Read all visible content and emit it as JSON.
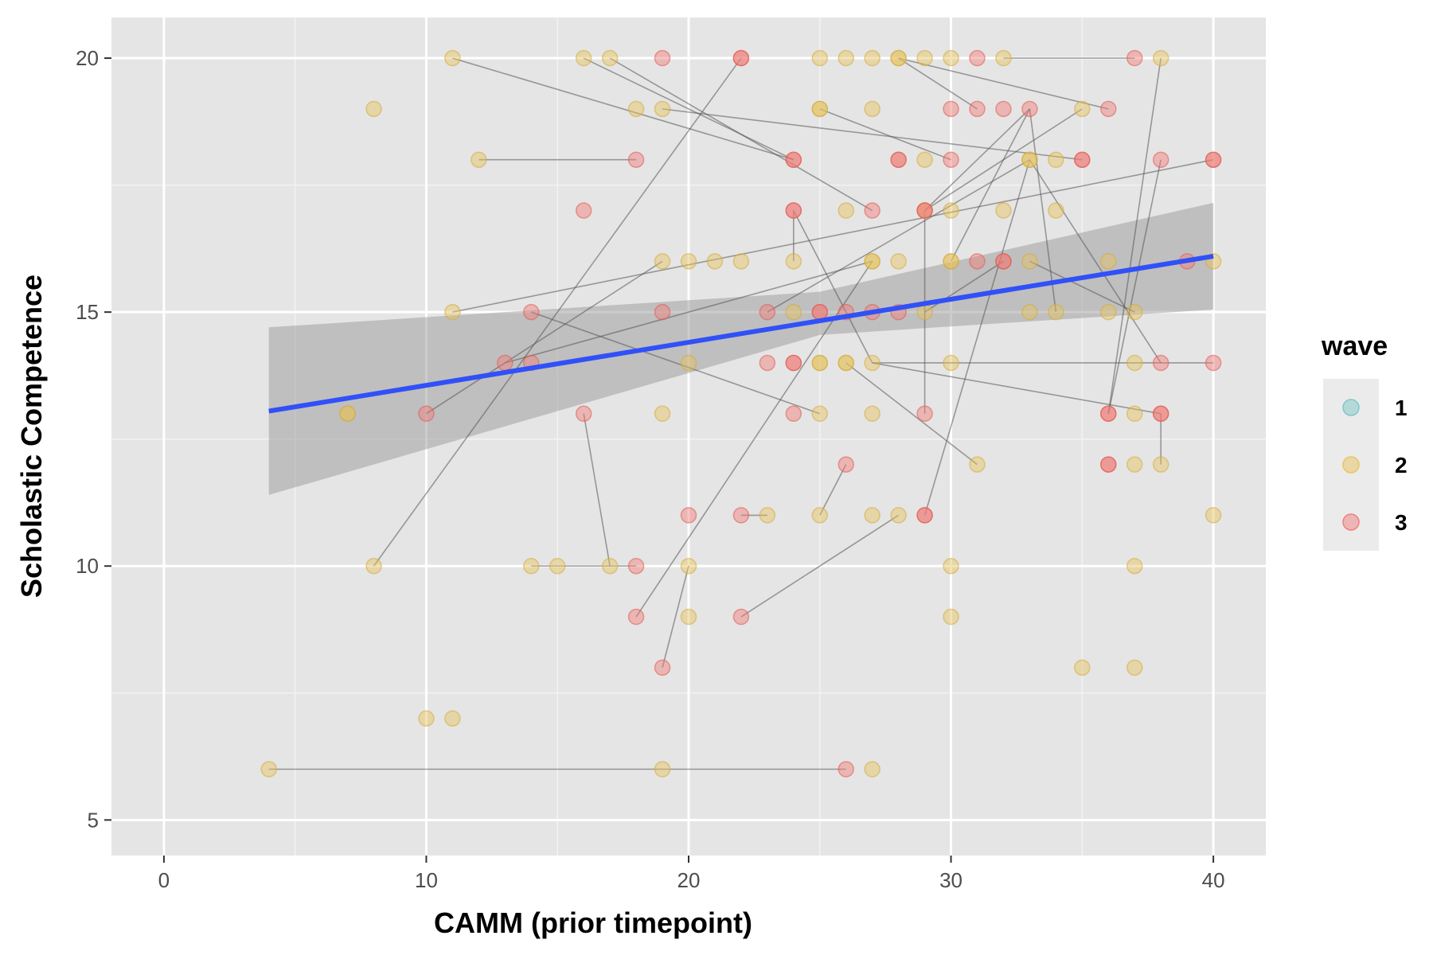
{
  "chart_data": {
    "type": "scatter",
    "title": "",
    "xlabel": "CAMM (prior timepoint)",
    "ylabel": "Scholastic Competence",
    "xlim": [
      -2,
      42
    ],
    "ylim": [
      4.3,
      20.8
    ],
    "x_ticks": [
      0,
      10,
      20,
      30,
      40
    ],
    "y_ticks": [
      5,
      10,
      15,
      20
    ],
    "grid": true,
    "legend": {
      "title": "wave",
      "placement": "right",
      "items": [
        {
          "label": "1",
          "color": "#7fc8c8"
        },
        {
          "label": "2",
          "color": "#e8c560"
        },
        {
          "label": "3",
          "color": "#f08080"
        }
      ]
    },
    "colors": {
      "wave2": "#e5c15b",
      "wave3": "#ef7b74",
      "wave2_stroke": "#d4aa3a",
      "wave3_stroke": "#e05a52",
      "trend": "#3050f8",
      "ribbon": "#999999",
      "panel": "#e5e5e5",
      "connector": "#555555"
    },
    "trend_line": {
      "x": [
        4,
        40
      ],
      "y": [
        13.05,
        16.1
      ],
      "ci_lower": [
        11.4,
        15.05
      ],
      "ci_upper": [
        14.7,
        17.15
      ],
      "ci_mid_x": 25,
      "ci_mid_lower": [
        14.55
      ],
      "ci_mid_upper": [
        15.4
      ]
    },
    "series": [
      {
        "name": "2",
        "points": [
          [
            11,
            20
          ],
          [
            16,
            20
          ],
          [
            17,
            20
          ],
          [
            25,
            20
          ],
          [
            26,
            20
          ],
          [
            27,
            20
          ],
          [
            28,
            20
          ],
          [
            28,
            20
          ],
          [
            29,
            20
          ],
          [
            30,
            20
          ],
          [
            32,
            20
          ],
          [
            38,
            20
          ],
          [
            8,
            19
          ],
          [
            18,
            19
          ],
          [
            19,
            19
          ],
          [
            25,
            19
          ],
          [
            25,
            19
          ],
          [
            27,
            19
          ],
          [
            35,
            19
          ],
          [
            12,
            18
          ],
          [
            29,
            18
          ],
          [
            33,
            18
          ],
          [
            33,
            18
          ],
          [
            34,
            18
          ],
          [
            26,
            17
          ],
          [
            29,
            17
          ],
          [
            30,
            17
          ],
          [
            32,
            17
          ],
          [
            34,
            17
          ],
          [
            19,
            16
          ],
          [
            20,
            16
          ],
          [
            21,
            16
          ],
          [
            22,
            16
          ],
          [
            24,
            16
          ],
          [
            27,
            16
          ],
          [
            27,
            16
          ],
          [
            28,
            16
          ],
          [
            30,
            16
          ],
          [
            30,
            16
          ],
          [
            33,
            16
          ],
          [
            36,
            16
          ],
          [
            40,
            16
          ],
          [
            11,
            15
          ],
          [
            24,
            15
          ],
          [
            29,
            15
          ],
          [
            33,
            15
          ],
          [
            34,
            15
          ],
          [
            36,
            15
          ],
          [
            37,
            15
          ],
          [
            20,
            14
          ],
          [
            25,
            14
          ],
          [
            25,
            14
          ],
          [
            26,
            14
          ],
          [
            26,
            14
          ],
          [
            27,
            14
          ],
          [
            30,
            14
          ],
          [
            37,
            14
          ],
          [
            7,
            13
          ],
          [
            7,
            13
          ],
          [
            19,
            13
          ],
          [
            25,
            13
          ],
          [
            27,
            13
          ],
          [
            37,
            13
          ],
          [
            31,
            12
          ],
          [
            37,
            12
          ],
          [
            38,
            12
          ],
          [
            23,
            11
          ],
          [
            25,
            11
          ],
          [
            27,
            11
          ],
          [
            28,
            11
          ],
          [
            40,
            11
          ],
          [
            8,
            10
          ],
          [
            14,
            10
          ],
          [
            15,
            10
          ],
          [
            17,
            10
          ],
          [
            20,
            10
          ],
          [
            30,
            10
          ],
          [
            37,
            10
          ],
          [
            20,
            9
          ],
          [
            30,
            9
          ],
          [
            35,
            8
          ],
          [
            37,
            8
          ],
          [
            10,
            7
          ],
          [
            11,
            7
          ],
          [
            4,
            6
          ],
          [
            19,
            6
          ],
          [
            27,
            6
          ]
        ]
      },
      {
        "name": "3",
        "points": [
          [
            19,
            20
          ],
          [
            22,
            20
          ],
          [
            22,
            20
          ],
          [
            31,
            20
          ],
          [
            37,
            20
          ],
          [
            30,
            19
          ],
          [
            31,
            19
          ],
          [
            32,
            19
          ],
          [
            33,
            19
          ],
          [
            36,
            19
          ],
          [
            18,
            18
          ],
          [
            24,
            18
          ],
          [
            24,
            18
          ],
          [
            28,
            18
          ],
          [
            28,
            18
          ],
          [
            30,
            18
          ],
          [
            35,
            18
          ],
          [
            35,
            18
          ],
          [
            38,
            18
          ],
          [
            40,
            18
          ],
          [
            40,
            18
          ],
          [
            16,
            17
          ],
          [
            24,
            17
          ],
          [
            24,
            17
          ],
          [
            27,
            17
          ],
          [
            29,
            17
          ],
          [
            29,
            17
          ],
          [
            31,
            16
          ],
          [
            32,
            16
          ],
          [
            32,
            16
          ],
          [
            39,
            16
          ],
          [
            14,
            15
          ],
          [
            19,
            15
          ],
          [
            23,
            15
          ],
          [
            25,
            15
          ],
          [
            25,
            15
          ],
          [
            26,
            15
          ],
          [
            27,
            15
          ],
          [
            28,
            15
          ],
          [
            13,
            14
          ],
          [
            14,
            14
          ],
          [
            23,
            14
          ],
          [
            24,
            14
          ],
          [
            24,
            14
          ],
          [
            38,
            14
          ],
          [
            40,
            14
          ],
          [
            10,
            13
          ],
          [
            16,
            13
          ],
          [
            24,
            13
          ],
          [
            29,
            13
          ],
          [
            36,
            13
          ],
          [
            36,
            13
          ],
          [
            38,
            13
          ],
          [
            38,
            13
          ],
          [
            26,
            12
          ],
          [
            36,
            12
          ],
          [
            36,
            12
          ],
          [
            20,
            11
          ],
          [
            22,
            11
          ],
          [
            29,
            11
          ],
          [
            29,
            11
          ],
          [
            18,
            10
          ],
          [
            18,
            9
          ],
          [
            22,
            9
          ],
          [
            19,
            8
          ],
          [
            26,
            6
          ]
        ]
      }
    ],
    "connectors": [
      [
        [
          11,
          20
        ],
        [
          24,
          18
        ]
      ],
      [
        [
          16,
          20
        ],
        [
          24,
          18
        ]
      ],
      [
        [
          17,
          20
        ],
        [
          27,
          17
        ]
      ],
      [
        [
          22,
          20
        ],
        [
          8,
          10
        ]
      ],
      [
        [
          28,
          20
        ],
        [
          31,
          19
        ]
      ],
      [
        [
          32,
          20
        ],
        [
          37,
          20
        ]
      ],
      [
        [
          28,
          20
        ],
        [
          36,
          19
        ]
      ],
      [
        [
          19,
          19
        ],
        [
          35,
          18
        ]
      ],
      [
        [
          12,
          18
        ],
        [
          18,
          18
        ]
      ],
      [
        [
          25,
          19
        ],
        [
          30,
          18
        ]
      ],
      [
        [
          29,
          17
        ],
        [
          33,
          19
        ]
      ],
      [
        [
          29,
          17
        ],
        [
          35,
          19
        ]
      ],
      [
        [
          29,
          17
        ],
        [
          29,
          13
        ]
      ],
      [
        [
          24,
          17
        ],
        [
          24,
          16
        ]
      ],
      [
        [
          24,
          17
        ],
        [
          27,
          14
        ]
      ],
      [
        [
          11,
          15
        ],
        [
          40,
          18
        ]
      ],
      [
        [
          10,
          13
        ],
        [
          19,
          16
        ]
      ],
      [
        [
          13,
          14
        ],
        [
          27,
          16
        ]
      ],
      [
        [
          14,
          15
        ],
        [
          25,
          13
        ]
      ],
      [
        [
          16,
          13
        ],
        [
          17,
          10
        ]
      ],
      [
        [
          14,
          10
        ],
        [
          18,
          10
        ]
      ],
      [
        [
          18,
          9
        ],
        [
          27,
          16
        ]
      ],
      [
        [
          19,
          8
        ],
        [
          20,
          10
        ]
      ],
      [
        [
          22,
          9
        ],
        [
          28,
          11
        ]
      ],
      [
        [
          22,
          11
        ],
        [
          23,
          11
        ]
      ],
      [
        [
          25,
          11
        ],
        [
          26,
          12
        ]
      ],
      [
        [
          29,
          11
        ],
        [
          33,
          18
        ]
      ],
      [
        [
          4,
          6
        ],
        [
          26,
          6
        ]
      ],
      [
        [
          27,
          14
        ],
        [
          40,
          14
        ]
      ],
      [
        [
          27,
          14
        ],
        [
          38,
          13
        ]
      ],
      [
        [
          26,
          14
        ],
        [
          31,
          12
        ]
      ],
      [
        [
          33,
          18
        ],
        [
          38,
          14
        ]
      ],
      [
        [
          36,
          13
        ],
        [
          38,
          18
        ]
      ],
      [
        [
          36,
          13
        ],
        [
          38,
          20
        ]
      ],
      [
        [
          38,
          13
        ],
        [
          38,
          12
        ]
      ],
      [
        [
          29,
          15
        ],
        [
          32,
          16
        ]
      ],
      [
        [
          33,
          19
        ],
        [
          34,
          15
        ]
      ],
      [
        [
          30,
          16
        ],
        [
          33,
          19
        ]
      ],
      [
        [
          33,
          16
        ],
        [
          37,
          15
        ]
      ],
      [
        [
          23,
          15
        ],
        [
          33,
          18
        ]
      ]
    ]
  }
}
